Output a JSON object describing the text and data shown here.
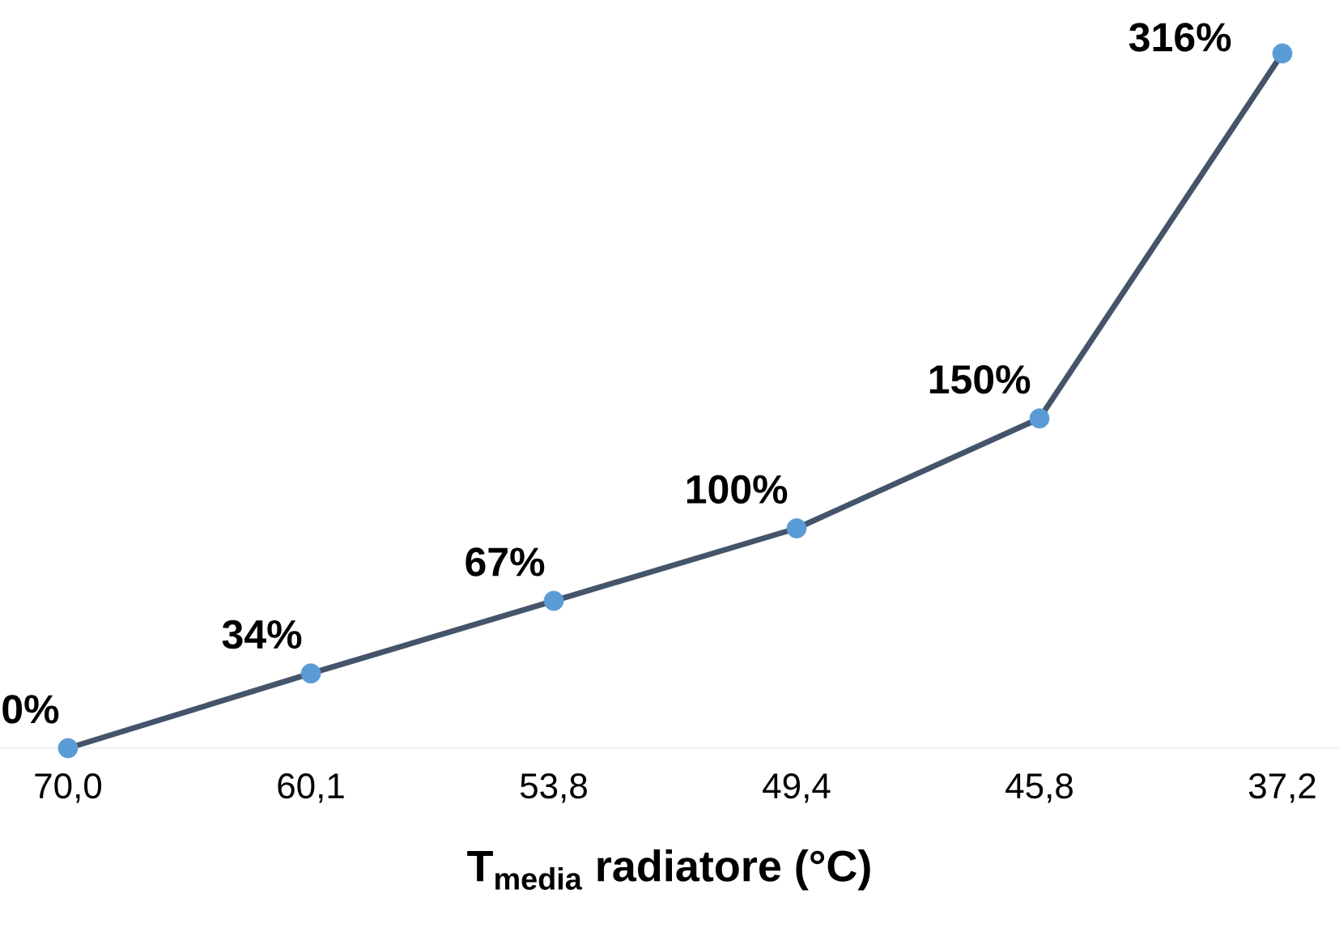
{
  "chart_data": {
    "type": "line",
    "xlabel": "T$_{media}$ radiatore (°C)",
    "categories": [
      "70,0",
      "60,1",
      "53,8",
      "49,4",
      "45,8",
      "37,2"
    ],
    "series": [
      {
        "color": "#44546a",
        "colors": [
          "#5b9bd5",
          "#5b9bd5",
          "#5b9bd5",
          "#5b9bd5",
          "#5b9bd5",
          "#5b9bd5"
        ],
        "values": [
          0,
          34,
          67,
          100,
          150,
          316
        ],
        "value_labels": [
          "0%",
          "34%",
          "67%",
          "100%",
          "150%",
          "316%"
        ]
      }
    ],
    "marker": "circle",
    "line_style": "solid"
  }
}
